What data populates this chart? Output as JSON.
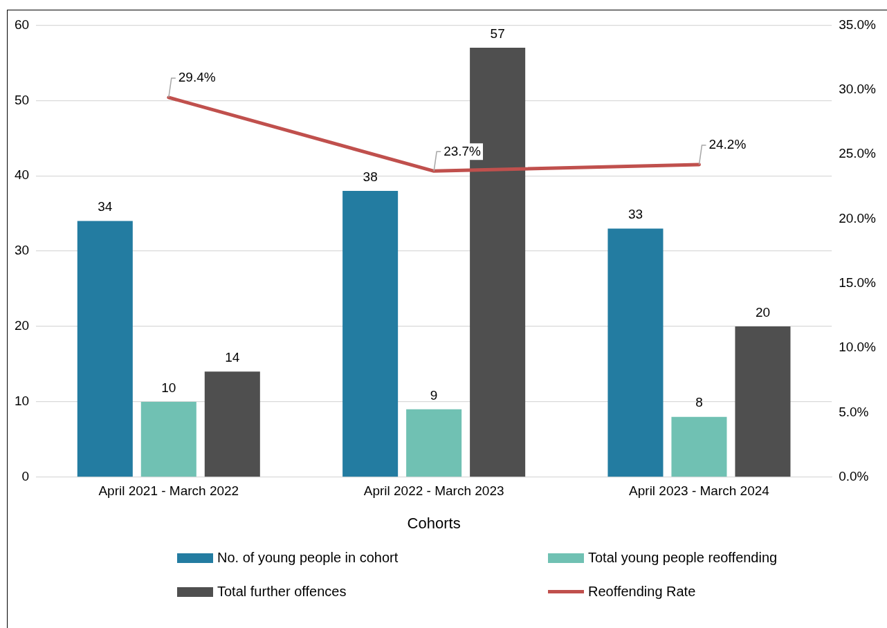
{
  "chart_data": {
    "type": "bar",
    "xlabel": "Cohorts",
    "categories": [
      "April 2021 - March 2022",
      "April 2022 - March 2023",
      "April 2023 - March 2024"
    ],
    "series": [
      {
        "name": "No. of young people in cohort",
        "color": "#237ca1",
        "values": [
          34,
          38,
          33
        ],
        "value_labels": [
          "34",
          "38",
          "33"
        ]
      },
      {
        "name": "Total young people reoffending",
        "color": "#70c1b3",
        "values": [
          10,
          9,
          8
        ],
        "value_labels": [
          "10",
          "9",
          "8"
        ]
      },
      {
        "name": "Total further offences",
        "color": "#4f4f4f",
        "values": [
          14,
          57,
          20
        ],
        "value_labels": [
          "14",
          "57",
          "20"
        ]
      },
      {
        "name": "Reoffending Rate",
        "type": "line",
        "axis": "y2",
        "color": "#c0504d",
        "values": [
          29.4,
          23.7,
          24.2
        ],
        "value_labels": [
          "29.4%",
          "23.7%",
          "24.2%"
        ]
      }
    ],
    "ylim": [
      0,
      60
    ],
    "yticks": [
      0,
      10,
      20,
      30,
      40,
      50,
      60
    ],
    "y2lim": [
      0,
      35
    ],
    "y2ticks": [
      {
        "value": 0,
        "label": "0.0%"
      },
      {
        "value": 5,
        "label": "5.0%"
      },
      {
        "value": 10,
        "label": "10.0%"
      },
      {
        "value": 15,
        "label": "15.0%"
      },
      {
        "value": 20,
        "label": "20.0%"
      },
      {
        "value": 25,
        "label": "25.0%"
      },
      {
        "value": 30,
        "label": "30.0%"
      },
      {
        "value": 35,
        "label": "35.0%"
      }
    ],
    "grid": "y",
    "legend": "bottom",
    "marker": "none",
    "line_style": "solid"
  }
}
